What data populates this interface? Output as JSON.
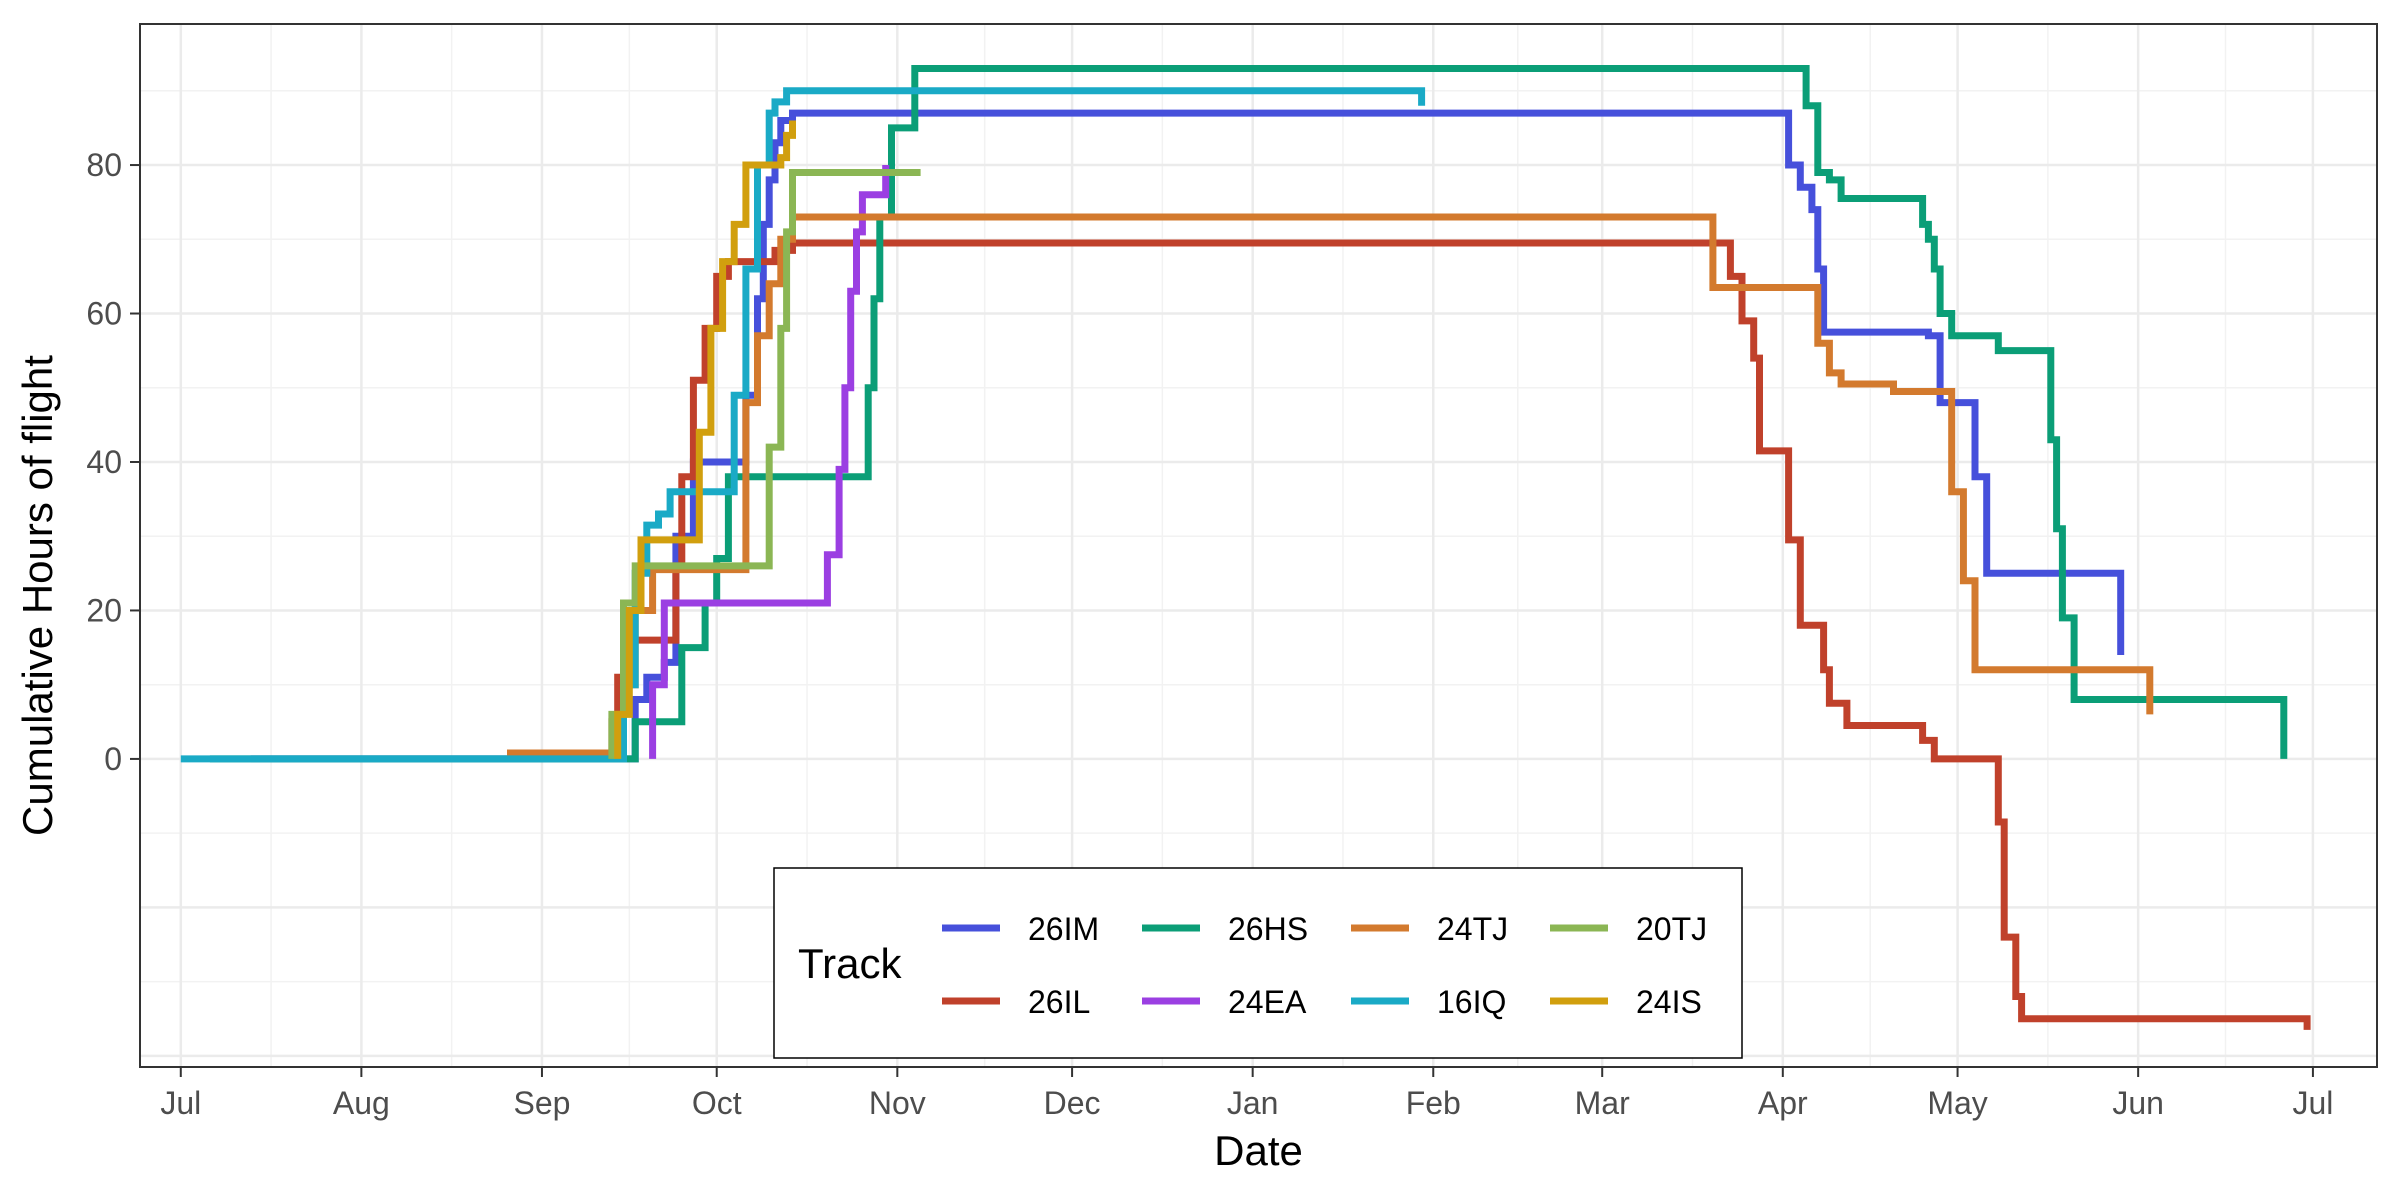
{
  "chart_data": {
    "type": "line",
    "xlabel": "Date",
    "ylabel": "Cumulative Hours of flight",
    "x_ticks": [
      "Jul",
      "Aug",
      "Sep",
      "Oct",
      "Nov",
      "Dec",
      "Jan",
      "Feb",
      "Mar",
      "Apr",
      "May",
      "Jun",
      "Jul"
    ],
    "y_ticks": [
      0,
      20,
      40,
      60,
      80
    ],
    "xlim": [
      "2019-06-24",
      "2020-07-12"
    ],
    "ylim": [
      -41.5,
      99
    ],
    "grid": true,
    "legend": {
      "title": "Track",
      "placement": "bottom-center",
      "columns": 4
    },
    "series": [
      {
        "name": "26IM",
        "color": "#4650db",
        "points": [
          [
            "2019-07-13",
            0
          ],
          [
            "2019-09-17",
            0
          ],
          [
            "2019-09-17",
            8
          ],
          [
            "2019-09-19",
            8
          ],
          [
            "2019-09-19",
            11
          ],
          [
            "2019-09-22",
            11
          ],
          [
            "2019-09-22",
            13
          ],
          [
            "2019-09-24",
            13
          ],
          [
            "2019-09-24",
            30
          ],
          [
            "2019-09-27",
            30
          ],
          [
            "2019-09-27",
            40
          ],
          [
            "2019-10-06",
            40
          ],
          [
            "2019-10-06",
            49
          ],
          [
            "2019-10-08",
            49
          ],
          [
            "2019-10-08",
            62
          ],
          [
            "2019-10-09",
            62
          ],
          [
            "2019-10-09",
            72
          ],
          [
            "2019-10-10",
            72
          ],
          [
            "2019-10-10",
            78
          ],
          [
            "2019-10-11",
            78
          ],
          [
            "2019-10-11",
            83
          ],
          [
            "2019-10-12",
            83
          ],
          [
            "2019-10-12",
            86
          ],
          [
            "2019-10-14",
            86
          ],
          [
            "2019-10-14",
            87
          ],
          [
            "2020-04-02",
            87
          ],
          [
            "2020-04-02",
            80
          ],
          [
            "2020-04-04",
            80
          ],
          [
            "2020-04-04",
            77
          ],
          [
            "2020-04-06",
            77
          ],
          [
            "2020-04-06",
            74
          ],
          [
            "2020-04-07",
            74
          ],
          [
            "2020-04-07",
            66
          ],
          [
            "2020-04-08",
            66
          ],
          [
            "2020-04-08",
            57.5
          ],
          [
            "2020-04-26",
            57.5
          ],
          [
            "2020-04-26",
            57
          ],
          [
            "2020-04-28",
            57
          ],
          [
            "2020-04-28",
            48
          ],
          [
            "2020-05-04",
            48
          ],
          [
            "2020-05-04",
            38
          ],
          [
            "2020-05-06",
            38
          ],
          [
            "2020-05-06",
            25
          ],
          [
            "2020-05-29",
            25
          ],
          [
            "2020-05-29",
            14
          ]
        ]
      },
      {
        "name": "26IL",
        "color": "#c0412b",
        "points": [
          [
            "2019-09-13",
            0
          ],
          [
            "2019-09-13",
            5
          ],
          [
            "2019-09-14",
            5
          ],
          [
            "2019-09-14",
            11
          ],
          [
            "2019-09-15",
            11
          ],
          [
            "2019-09-15",
            16
          ],
          [
            "2019-09-24",
            16
          ],
          [
            "2019-09-24",
            26
          ],
          [
            "2019-09-25",
            26
          ],
          [
            "2019-09-25",
            38
          ],
          [
            "2019-09-27",
            38
          ],
          [
            "2019-09-27",
            51
          ],
          [
            "2019-09-29",
            51
          ],
          [
            "2019-09-29",
            58
          ],
          [
            "2019-10-01",
            58
          ],
          [
            "2019-10-01",
            65
          ],
          [
            "2019-10-03",
            65
          ],
          [
            "2019-10-03",
            67
          ],
          [
            "2019-10-11",
            67
          ],
          [
            "2019-10-11",
            68.5
          ],
          [
            "2019-10-14",
            68.5
          ],
          [
            "2019-10-14",
            69.5
          ],
          [
            "2020-03-23",
            69.5
          ],
          [
            "2020-03-23",
            65
          ],
          [
            "2020-03-25",
            65
          ],
          [
            "2020-03-25",
            59
          ],
          [
            "2020-03-27",
            59
          ],
          [
            "2020-03-27",
            54
          ],
          [
            "2020-03-28",
            54
          ],
          [
            "2020-03-28",
            41.5
          ],
          [
            "2020-04-02",
            41.5
          ],
          [
            "2020-04-02",
            29.5
          ],
          [
            "2020-04-04",
            29.5
          ],
          [
            "2020-04-04",
            18
          ],
          [
            "2020-04-08",
            18
          ],
          [
            "2020-04-08",
            12
          ],
          [
            "2020-04-09",
            12
          ],
          [
            "2020-04-09",
            7.5
          ],
          [
            "2020-04-12",
            7.5
          ],
          [
            "2020-04-12",
            4.5
          ],
          [
            "2020-04-25",
            4.5
          ],
          [
            "2020-04-25",
            2.5
          ],
          [
            "2020-04-27",
            2.5
          ],
          [
            "2020-04-27",
            0
          ],
          [
            "2020-05-08",
            0
          ],
          [
            "2020-05-08",
            -8.5
          ],
          [
            "2020-05-09",
            -8.5
          ],
          [
            "2020-05-09",
            -24
          ],
          [
            "2020-05-11",
            -24
          ],
          [
            "2020-05-11",
            -32
          ],
          [
            "2020-05-12",
            -32
          ],
          [
            "2020-05-12",
            -35
          ],
          [
            "2020-06-30",
            -35
          ],
          [
            "2020-06-30",
            -36.5
          ]
        ]
      },
      {
        "name": "26HS",
        "color": "#0b9e77",
        "points": [
          [
            "2019-07-06",
            0
          ],
          [
            "2019-09-17",
            0
          ],
          [
            "2019-09-17",
            5
          ],
          [
            "2019-09-25",
            5
          ],
          [
            "2019-09-25",
            15
          ],
          [
            "2019-09-29",
            15
          ],
          [
            "2019-09-29",
            21
          ],
          [
            "2019-10-01",
            21
          ],
          [
            "2019-10-01",
            27
          ],
          [
            "2019-10-03",
            27
          ],
          [
            "2019-10-03",
            38
          ],
          [
            "2019-10-27",
            38
          ],
          [
            "2019-10-27",
            50
          ],
          [
            "2019-10-28",
            50
          ],
          [
            "2019-10-28",
            62
          ],
          [
            "2019-10-29",
            62
          ],
          [
            "2019-10-29",
            73
          ],
          [
            "2019-10-31",
            73
          ],
          [
            "2019-10-31",
            85
          ],
          [
            "2019-11-04",
            85
          ],
          [
            "2019-11-04",
            93
          ],
          [
            "2020-04-05",
            93
          ],
          [
            "2020-04-05",
            88
          ],
          [
            "2020-04-07",
            88
          ],
          [
            "2020-04-07",
            79
          ],
          [
            "2020-04-09",
            79
          ],
          [
            "2020-04-09",
            78
          ],
          [
            "2020-04-11",
            78
          ],
          [
            "2020-04-11",
            75.5
          ],
          [
            "2020-04-25",
            75.5
          ],
          [
            "2020-04-25",
            72
          ],
          [
            "2020-04-26",
            72
          ],
          [
            "2020-04-26",
            70
          ],
          [
            "2020-04-27",
            70
          ],
          [
            "2020-04-27",
            66
          ],
          [
            "2020-04-28",
            66
          ],
          [
            "2020-04-28",
            60
          ],
          [
            "2020-04-30",
            60
          ],
          [
            "2020-04-30",
            57
          ],
          [
            "2020-05-08",
            57
          ],
          [
            "2020-05-08",
            55
          ],
          [
            "2020-05-17",
            55
          ],
          [
            "2020-05-17",
            43
          ],
          [
            "2020-05-18",
            43
          ],
          [
            "2020-05-18",
            31
          ],
          [
            "2020-05-19",
            31
          ],
          [
            "2020-05-19",
            19
          ],
          [
            "2020-05-21",
            19
          ],
          [
            "2020-05-21",
            8
          ],
          [
            "2020-06-26",
            8
          ],
          [
            "2020-06-26",
            0
          ]
        ]
      },
      {
        "name": "24EA",
        "color": "#9b3fe2",
        "points": [
          [
            "2019-09-20",
            0
          ],
          [
            "2019-09-20",
            10
          ],
          [
            "2019-09-22",
            10
          ],
          [
            "2019-09-22",
            21
          ],
          [
            "2019-10-20",
            21
          ],
          [
            "2019-10-20",
            27.5
          ],
          [
            "2019-10-22",
            27.5
          ],
          [
            "2019-10-22",
            39
          ],
          [
            "2019-10-23",
            39
          ],
          [
            "2019-10-23",
            50
          ],
          [
            "2019-10-24",
            50
          ],
          [
            "2019-10-24",
            63
          ],
          [
            "2019-10-25",
            63
          ],
          [
            "2019-10-25",
            71
          ],
          [
            "2019-10-26",
            71
          ],
          [
            "2019-10-26",
            76
          ],
          [
            "2019-10-30",
            76
          ],
          [
            "2019-10-30",
            80
          ]
        ]
      },
      {
        "name": "24TJ",
        "color": "#d37a2e",
        "points": [
          [
            "2019-08-26",
            0.8
          ],
          [
            "2019-09-15",
            0.8
          ],
          [
            "2019-09-15",
            10
          ],
          [
            "2019-09-17",
            10
          ],
          [
            "2019-09-17",
            20
          ],
          [
            "2019-09-20",
            20
          ],
          [
            "2019-09-20",
            25.5
          ],
          [
            "2019-10-06",
            25.5
          ],
          [
            "2019-10-06",
            48
          ],
          [
            "2019-10-08",
            48
          ],
          [
            "2019-10-08",
            57
          ],
          [
            "2019-10-10",
            57
          ],
          [
            "2019-10-10",
            64
          ],
          [
            "2019-10-12",
            64
          ],
          [
            "2019-10-12",
            70
          ],
          [
            "2019-10-14",
            70
          ],
          [
            "2019-10-14",
            73
          ],
          [
            "2020-03-20",
            73
          ],
          [
            "2020-03-20",
            63.5
          ],
          [
            "2020-04-07",
            63.5
          ],
          [
            "2020-04-07",
            56
          ],
          [
            "2020-04-09",
            56
          ],
          [
            "2020-04-09",
            52
          ],
          [
            "2020-04-11",
            52
          ],
          [
            "2020-04-11",
            50.5
          ],
          [
            "2020-04-20",
            50.5
          ],
          [
            "2020-04-20",
            49.5
          ],
          [
            "2020-04-30",
            49.5
          ],
          [
            "2020-04-30",
            36
          ],
          [
            "2020-05-02",
            36
          ],
          [
            "2020-05-02",
            24
          ],
          [
            "2020-05-04",
            24
          ],
          [
            "2020-05-04",
            12
          ],
          [
            "2020-06-03",
            12
          ],
          [
            "2020-06-03",
            6
          ]
        ]
      },
      {
        "name": "16IQ",
        "color": "#1aaac6",
        "points": [
          [
            "2019-07-01",
            0
          ],
          [
            "2019-09-15",
            0
          ],
          [
            "2019-09-15",
            10
          ],
          [
            "2019-09-17",
            10
          ],
          [
            "2019-09-17",
            25
          ],
          [
            "2019-09-19",
            25
          ],
          [
            "2019-09-19",
            31.5
          ],
          [
            "2019-09-21",
            31.5
          ],
          [
            "2019-09-21",
            33
          ],
          [
            "2019-09-23",
            33
          ],
          [
            "2019-09-23",
            36
          ],
          [
            "2019-10-04",
            36
          ],
          [
            "2019-10-04",
            49
          ],
          [
            "2019-10-06",
            49
          ],
          [
            "2019-10-06",
            66
          ],
          [
            "2019-10-08",
            66
          ],
          [
            "2019-10-08",
            80
          ],
          [
            "2019-10-10",
            80
          ],
          [
            "2019-10-10",
            87
          ],
          [
            "2019-10-11",
            87
          ],
          [
            "2019-10-11",
            88.5
          ],
          [
            "2019-10-13",
            88.5
          ],
          [
            "2019-10-13",
            90
          ],
          [
            "2020-01-30",
            90
          ],
          [
            "2020-01-30",
            88
          ]
        ]
      },
      {
        "name": "20TJ",
        "color": "#8bb654",
        "points": [
          [
            "2019-09-13",
            0
          ],
          [
            "2019-09-13",
            6
          ],
          [
            "2019-09-15",
            6
          ],
          [
            "2019-09-15",
            21
          ],
          [
            "2019-09-17",
            21
          ],
          [
            "2019-09-17",
            26
          ],
          [
            "2019-10-10",
            26
          ],
          [
            "2019-10-10",
            42
          ],
          [
            "2019-10-12",
            42
          ],
          [
            "2019-10-12",
            58
          ],
          [
            "2019-10-13",
            58
          ],
          [
            "2019-10-13",
            71
          ],
          [
            "2019-10-14",
            71
          ],
          [
            "2019-10-14",
            79
          ],
          [
            "2019-11-05",
            79
          ]
        ]
      },
      {
        "name": "24IS",
        "color": "#d19f0e",
        "points": [
          [
            "2019-09-14",
            0
          ],
          [
            "2019-09-14",
            6
          ],
          [
            "2019-09-16",
            6
          ],
          [
            "2019-09-16",
            20
          ],
          [
            "2019-09-18",
            20
          ],
          [
            "2019-09-18",
            29.5
          ],
          [
            "2019-09-28",
            29.5
          ],
          [
            "2019-09-28",
            44
          ],
          [
            "2019-09-30",
            44
          ],
          [
            "2019-09-30",
            58
          ],
          [
            "2019-10-02",
            58
          ],
          [
            "2019-10-02",
            67
          ],
          [
            "2019-10-04",
            67
          ],
          [
            "2019-10-04",
            72
          ],
          [
            "2019-10-06",
            72
          ],
          [
            "2019-10-06",
            80
          ],
          [
            "2019-10-12",
            80
          ],
          [
            "2019-10-12",
            81
          ],
          [
            "2019-10-13",
            81
          ],
          [
            "2019-10-13",
            84
          ],
          [
            "2019-10-14",
            84
          ],
          [
            "2019-10-14",
            86
          ]
        ]
      }
    ]
  }
}
